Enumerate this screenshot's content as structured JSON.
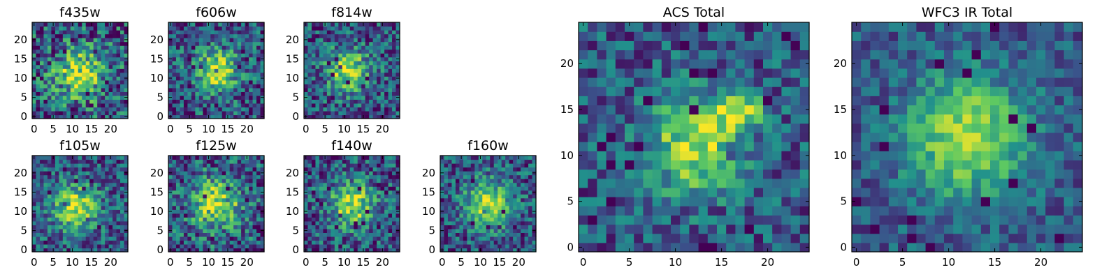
{
  "chart_data": [
    {
      "type": "heatmap",
      "title": "f435w",
      "xlim": [
        0,
        25
      ],
      "ylim": [
        0,
        25
      ],
      "xticks": [
        0,
        5,
        10,
        15,
        20
      ],
      "yticks": [
        0,
        5,
        10,
        15,
        20
      ],
      "peak": [
        12,
        11
      ],
      "spread": 4.5,
      "noise": 0.42,
      "seed": 11
    },
    {
      "type": "heatmap",
      "title": "f606w",
      "xlim": [
        0,
        25
      ],
      "ylim": [
        0,
        25
      ],
      "xticks": [
        0,
        5,
        10,
        15,
        20
      ],
      "yticks": [
        0,
        5,
        10,
        15,
        20
      ],
      "peak": [
        12,
        12
      ],
      "spread": 4,
      "noise": 0.34,
      "seed": 23
    },
    {
      "type": "heatmap",
      "title": "f814w",
      "xlim": [
        0,
        25
      ],
      "ylim": [
        0,
        25
      ],
      "xticks": [
        0,
        5,
        10,
        15,
        20
      ],
      "yticks": [
        0,
        5,
        10,
        15,
        20
      ],
      "peak": [
        11,
        12
      ],
      "spread": 3.8,
      "noise": 0.33,
      "seed": 37
    },
    {
      "type": "heatmap",
      "title": "f105w",
      "xlim": [
        0,
        25
      ],
      "ylim": [
        0,
        25
      ],
      "xticks": [
        0,
        5,
        10,
        15,
        20
      ],
      "yticks": [
        0,
        5,
        10,
        15,
        20
      ],
      "peak": [
        11,
        11
      ],
      "spread": 4.2,
      "noise": 0.3,
      "seed": 41
    },
    {
      "type": "heatmap",
      "title": "f125w",
      "xlim": [
        0,
        25
      ],
      "ylim": [
        0,
        25
      ],
      "xticks": [
        0,
        5,
        10,
        15,
        20
      ],
      "yticks": [
        0,
        5,
        10,
        15,
        20
      ],
      "peak": [
        12,
        12
      ],
      "spread": 4.6,
      "noise": 0.36,
      "seed": 53
    },
    {
      "type": "heatmap",
      "title": "f140w",
      "xlim": [
        0,
        25
      ],
      "ylim": [
        0,
        25
      ],
      "xticks": [
        0,
        5,
        10,
        15,
        20
      ],
      "yticks": [
        0,
        5,
        10,
        15,
        20
      ],
      "peak": [
        12,
        12
      ],
      "spread": 4,
      "noise": 0.33,
      "seed": 67
    },
    {
      "type": "heatmap",
      "title": "f160w",
      "xlim": [
        0,
        25
      ],
      "ylim": [
        0,
        25
      ],
      "xticks": [
        0,
        5,
        10,
        15,
        20
      ],
      "yticks": [
        0,
        5,
        10,
        15,
        20
      ],
      "peak": [
        12,
        12
      ],
      "spread": 4.2,
      "noise": 0.3,
      "seed": 79
    },
    {
      "type": "heatmap",
      "title": "ACS Total",
      "xlim": [
        0,
        25
      ],
      "ylim": [
        0,
        25
      ],
      "xticks": [
        0,
        5,
        10,
        15,
        20
      ],
      "yticks": [
        0,
        5,
        10,
        15,
        20
      ],
      "peak": [
        12,
        11
      ],
      "spread": 3.5,
      "noise": 0.27,
      "seed": 97,
      "extra_peaks": [
        [
          17,
          15,
          1.8,
          0.8
        ]
      ]
    },
    {
      "type": "heatmap",
      "title": "WFC3 IR Total",
      "xlim": [
        0,
        25
      ],
      "ylim": [
        0,
        25
      ],
      "xticks": [
        0,
        5,
        10,
        15,
        20
      ],
      "yticks": [
        0,
        5,
        10,
        15,
        20
      ],
      "peak": [
        12,
        12
      ],
      "spread": 4.5,
      "noise": 0.2,
      "seed": 113
    }
  ],
  "colormap": [
    "#440154",
    "#3b528b",
    "#21918c",
    "#5ec962",
    "#fde725"
  ]
}
